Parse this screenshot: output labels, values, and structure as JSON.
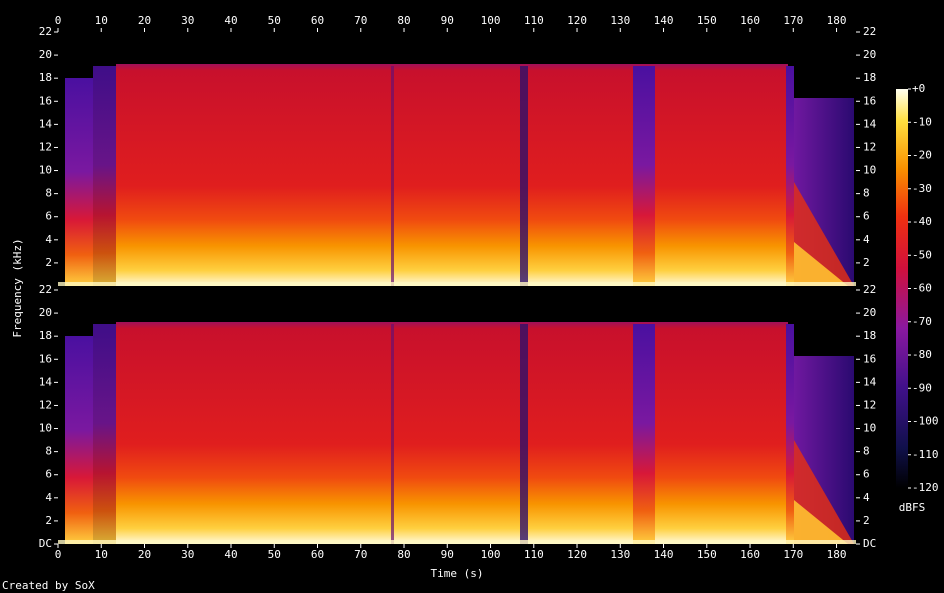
{
  "chart_data": {
    "type": "spectrogram",
    "x_label": "Time (s)",
    "y_label": "Frequency (kHz)",
    "xlim": [
      0,
      184.5
    ],
    "xticks": [
      0,
      10,
      20,
      30,
      40,
      50,
      60,
      70,
      80,
      90,
      100,
      110,
      120,
      130,
      140,
      150,
      160,
      170,
      180
    ],
    "panels": [
      {
        "ylim": [
          0,
          22
        ],
        "yticks": [
          2,
          4,
          6,
          8,
          10,
          12,
          14,
          16,
          18,
          20,
          22
        ]
      },
      {
        "ylim": [
          0,
          22
        ],
        "yticks": [
          {
            "value": 0,
            "label": "DC"
          },
          2,
          4,
          6,
          8,
          10,
          12,
          14,
          16,
          18,
          20,
          22
        ]
      }
    ],
    "colorbar": {
      "label": "dBFS",
      "lim": [
        -120,
        0
      ],
      "ticks": [
        {
          "value": 0,
          "label": "+0"
        },
        -10,
        -20,
        -30,
        -40,
        -50,
        -60,
        -70,
        -80,
        -90,
        -100,
        -110,
        -120
      ]
    },
    "footer": "Created by SoX"
  }
}
